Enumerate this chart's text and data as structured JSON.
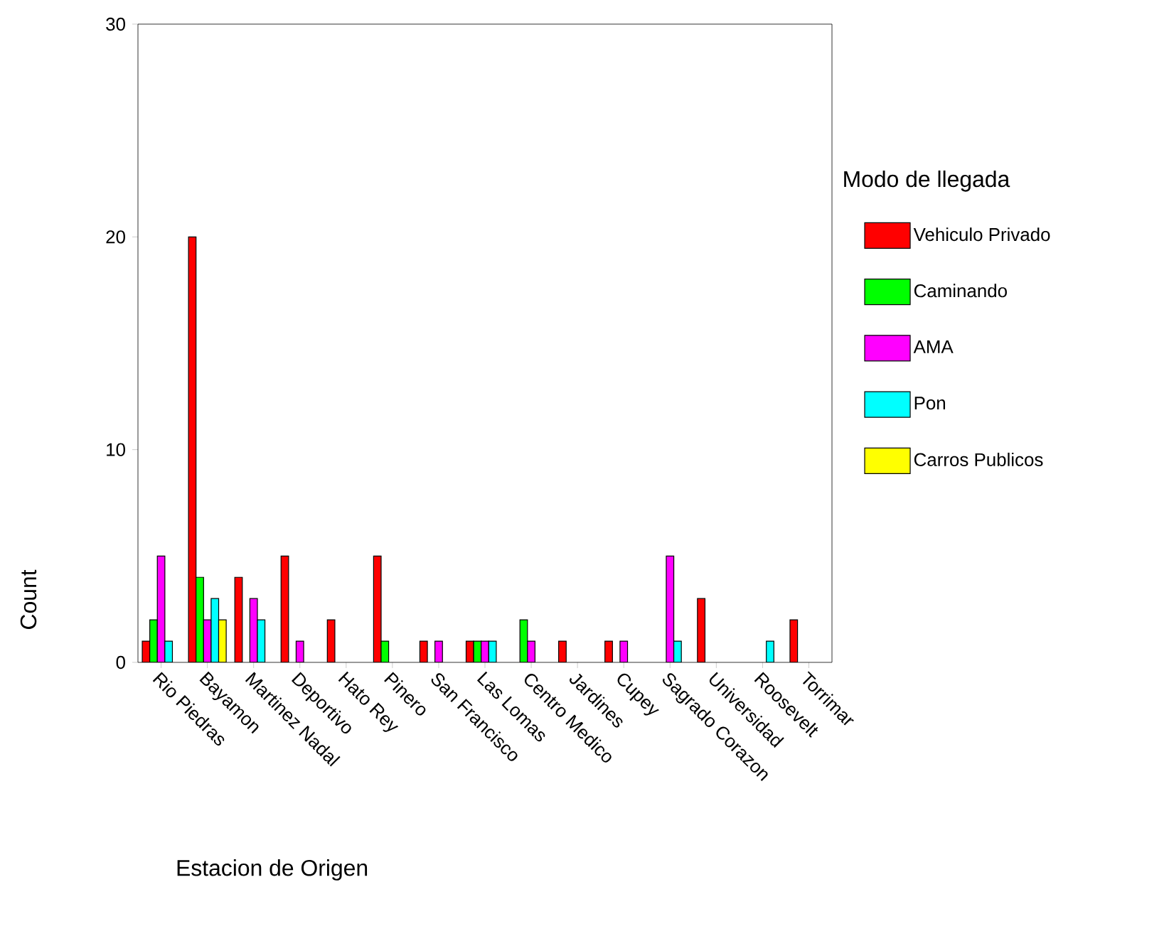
{
  "chart_data": {
    "type": "bar",
    "xlabel": "Estacion de Origen",
    "ylabel": "Count",
    "legend_title": "Modo de llegada",
    "categories": [
      "Rio Piedras",
      "Bayamon",
      "Martinez Nadal",
      "Deportivo",
      "Hato Rey",
      "Pinero",
      "San Francisco",
      "Las Lomas",
      "Centro Medico",
      "Jardines",
      "Cupey",
      "Sagrado Corazon",
      "Universidad",
      "Roosevelt",
      "Torrimar"
    ],
    "series": [
      {
        "name": "Vehiculo Privado",
        "color": "#ff0000",
        "values": [
          1,
          20,
          4,
          5,
          2,
          5,
          1,
          1,
          null,
          1,
          1,
          null,
          3,
          null,
          2
        ]
      },
      {
        "name": "Caminando",
        "color": "#00ff00",
        "values": [
          2,
          4,
          null,
          null,
          null,
          1,
          null,
          1,
          2,
          null,
          null,
          null,
          null,
          null,
          null
        ]
      },
      {
        "name": "AMA",
        "color": "#ff00ff",
        "values": [
          5,
          2,
          3,
          1,
          null,
          null,
          1,
          1,
          1,
          null,
          1,
          5,
          null,
          null,
          null
        ]
      },
      {
        "name": "Pon",
        "color": "#00ffff",
        "values": [
          1,
          3,
          2,
          null,
          null,
          null,
          null,
          1,
          null,
          null,
          null,
          1,
          null,
          1,
          null
        ]
      },
      {
        "name": "Carros Publicos",
        "color": "#ffff00",
        "values": [
          null,
          2,
          null,
          null,
          null,
          null,
          null,
          null,
          null,
          null,
          null,
          null,
          null,
          null,
          null
        ]
      }
    ],
    "ylim": [
      0,
      30
    ],
    "yticks": [
      0,
      10,
      20,
      30
    ],
    "grid": false,
    "legend": "right"
  }
}
